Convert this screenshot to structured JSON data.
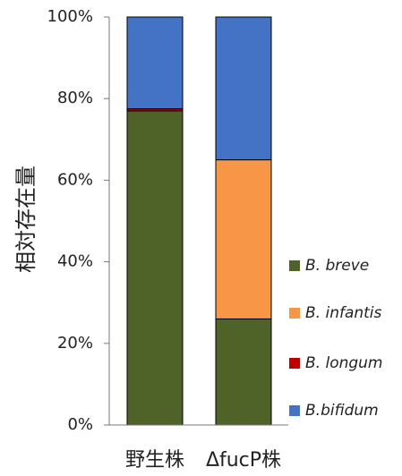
{
  "chart_data": {
    "type": "stacked_bar",
    "y_label": "相対存在量",
    "categories": [
      "野生株",
      "ΔfucP株"
    ],
    "series": [
      {
        "name": "B. breve",
        "color": "#4f6228",
        "values": [
          77,
          26
        ]
      },
      {
        "name": "B. infantis",
        "color": "#f79646",
        "values": [
          0,
          39
        ]
      },
      {
        "name": "B. longum",
        "color": "#c00000",
        "values": [
          0.5,
          0
        ]
      },
      {
        "name": "B.bifidum",
        "color": "#4472c4",
        "values": [
          22.5,
          35
        ]
      }
    ],
    "ylim": [
      0,
      100
    ],
    "yticks": [
      {
        "value": 0,
        "label": "0%"
      },
      {
        "value": 20,
        "label": "20%"
      },
      {
        "value": 40,
        "label": "40%"
      },
      {
        "value": 60,
        "label": "60%"
      },
      {
        "value": 80,
        "label": "80%"
      },
      {
        "value": 100,
        "label": "100%"
      }
    ],
    "legend": "right"
  }
}
